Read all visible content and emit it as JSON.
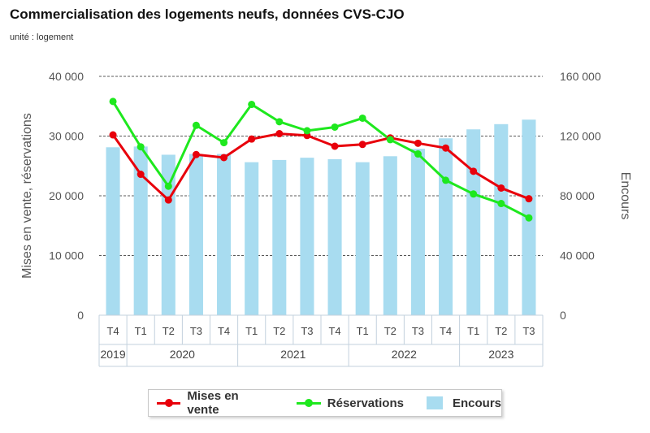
{
  "title": "Commercialisation des logements neufs, données CVS-CJO",
  "subtitle": "unité : logement",
  "legend": {
    "mises": "Mises en vente",
    "reservations": "Réservations",
    "encours": "Encours"
  },
  "colors": {
    "mises": "#e8000b",
    "reservations": "#1ee81e",
    "encours": "#a8dcf0",
    "grid": "#222222",
    "frame": "#c3d1dd"
  },
  "chart_data": {
    "type": "bar",
    "quarters": [
      "T4",
      "T1",
      "T2",
      "T3",
      "T4",
      "T1",
      "T2",
      "T3",
      "T4",
      "T1",
      "T2",
      "T3",
      "T4",
      "T1",
      "T2",
      "T3"
    ],
    "years": [
      {
        "label": "2019",
        "span": 1
      },
      {
        "label": "2020",
        "span": 4
      },
      {
        "label": "2021",
        "span": 4
      },
      {
        "label": "2022",
        "span": 4
      },
      {
        "label": "2023",
        "span": 3
      }
    ],
    "ylabel_left": "Mises en vente, réservations",
    "ylabel_right": "Encours",
    "ylim_left": [
      0,
      40000
    ],
    "ylim_right": [
      0,
      160000
    ],
    "yticks_left": [
      "0",
      "10 000",
      "20 000",
      "30 000",
      "40 000"
    ],
    "yticks_right": [
      "0",
      "40 000",
      "80 000",
      "120 000",
      "160 000"
    ],
    "grid": "horizontal dashed",
    "legend_position": "bottom",
    "series": [
      {
        "name": "Encours",
        "type": "bar",
        "axis": "right",
        "values": [
          112500,
          113000,
          107500,
          108000,
          108000,
          102500,
          104000,
          105500,
          104500,
          102500,
          106500,
          111500,
          118500,
          124500,
          128000,
          131000
        ]
      },
      {
        "name": "Mises en vente",
        "type": "line",
        "axis": "left",
        "values": [
          30200,
          23600,
          19300,
          26900,
          26400,
          29500,
          30400,
          30100,
          28300,
          28600,
          29700,
          28800,
          28000,
          24100,
          21300,
          19500
        ]
      },
      {
        "name": "Réservations",
        "type": "line",
        "axis": "left",
        "values": [
          35800,
          28200,
          21600,
          31800,
          28900,
          35300,
          32400,
          30900,
          31500,
          33000,
          29400,
          27000,
          22600,
          20300,
          18700,
          16300
        ]
      }
    ]
  }
}
